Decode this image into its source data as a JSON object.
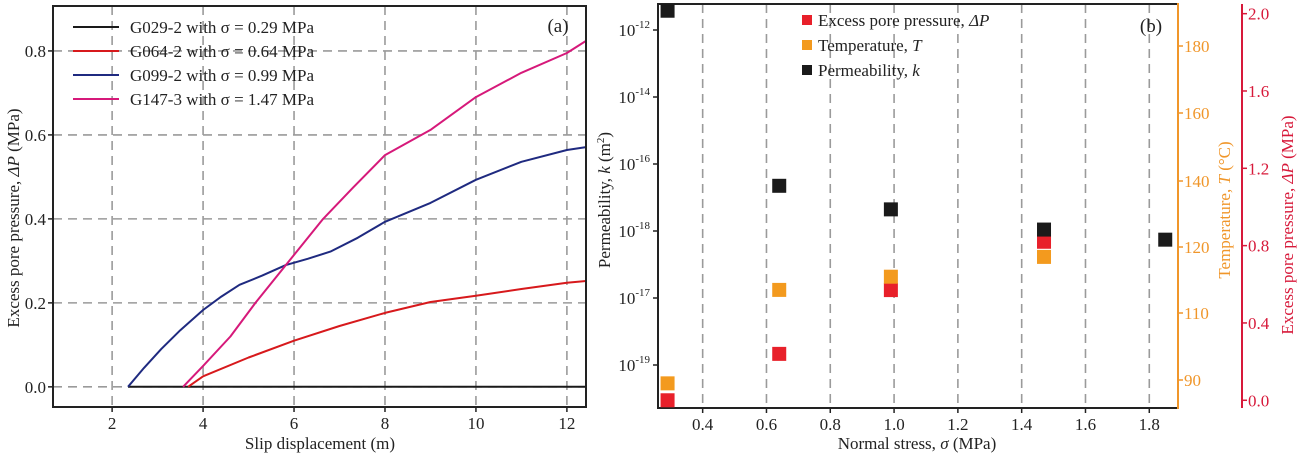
{
  "chart_data": [
    {
      "type": "line",
      "panel_label": "(a)",
      "xlabel": "Slip displacement (m)",
      "ylabel_prefix": "Excess pore pressure, ",
      "ylabel_symbol": "ΔP",
      "ylabel_suffix": " (MPa)",
      "xlim": [
        0.7,
        12.42
      ],
      "ylim": [
        -0.048,
        0.907
      ],
      "xticks": [
        2,
        4,
        6,
        8,
        10,
        12
      ],
      "xtick_labels": [
        "2",
        "4",
        "6",
        "8",
        "10",
        "12"
      ],
      "yticks": [
        0.0,
        0.2,
        0.4,
        0.6,
        0.8
      ],
      "ytick_labels": [
        "0.0",
        "0.2",
        "0.4",
        "0.6",
        "0.8"
      ],
      "grid": true,
      "legend_position": "top-left",
      "series": [
        {
          "name": "G029-2 with σ = 0.29 MPa",
          "color": "#1a1a1a",
          "x": [
            2.35,
            12.42
          ],
          "y": [
            0.0,
            0.0
          ]
        },
        {
          "name": "G064-2 with σ = 0.64 MPa",
          "color": "#d7191c",
          "x": [
            3.67,
            4.0,
            5.0,
            6.0,
            7.0,
            8.0,
            9.0,
            10.0,
            11.0,
            12.0,
            12.42
          ],
          "y": [
            0.0,
            0.025,
            0.07,
            0.11,
            0.145,
            0.176,
            0.202,
            0.217,
            0.233,
            0.248,
            0.252
          ]
        },
        {
          "name": "G099-2 with σ = 0.99 MPa",
          "color": "#1f2a80",
          "x": [
            2.35,
            2.7,
            3.08,
            3.5,
            4.0,
            4.4,
            4.8,
            5.3,
            5.82,
            6.3,
            6.8,
            7.4,
            8.0,
            9.0,
            10.0,
            11.0,
            12.0,
            12.42
          ],
          "y": [
            0.0,
            0.045,
            0.09,
            0.135,
            0.183,
            0.215,
            0.243,
            0.265,
            0.29,
            0.305,
            0.322,
            0.355,
            0.393,
            0.438,
            0.493,
            0.536,
            0.564,
            0.571
          ]
        },
        {
          "name": "G147-3 with σ = 1.47 MPa",
          "color": "#d6197a",
          "x": [
            3.56,
            4.0,
            4.6,
            5.15,
            5.82,
            6.64,
            7.3,
            8.0,
            9.0,
            10.0,
            11.0,
            12.0,
            12.42
          ],
          "y": [
            0.0,
            0.05,
            0.12,
            0.2,
            0.29,
            0.4,
            0.475,
            0.552,
            0.612,
            0.69,
            0.748,
            0.795,
            0.824
          ]
        }
      ]
    },
    {
      "type": "scatter",
      "panel_label": "(b)",
      "xlabel_prefix": "Normal stress, ",
      "xlabel_symbol": "σ",
      "xlabel_suffix": " (MPa)",
      "xlim": [
        0.26,
        1.89
      ],
      "xticks": [
        0.4,
        0.6,
        0.8,
        1.0,
        1.2,
        1.4,
        1.6,
        1.8
      ],
      "xtick_labels": [
        "0.4",
        "0.6",
        "0.8",
        "1.0",
        "1.2",
        "1.4",
        "1.6",
        "1.8"
      ],
      "grid": "vertical dashed",
      "legend_position": "top-center",
      "axes": {
        "left": {
          "label_prefix": "Permeability, ",
          "label_symbol": "k",
          "label_suffix": " (m",
          "label_sup": "2",
          "label_end": ")",
          "scale": "log",
          "color": "#1a1a1a",
          "ticks_exponent": [
            -12,
            -14,
            -16,
            -18,
            -17,
            -19
          ],
          "tick_base": "10",
          "ylim_exponent": [
            -23.2,
            -11.2
          ]
        },
        "right_inner": {
          "label_prefix": "Temperature, ",
          "label_symbol": "T",
          "label_suffix": " (°C)",
          "color": "#f0962a",
          "tick_labels": [
            "180",
            "160",
            "140",
            "120",
            "110",
            "90"
          ]
        },
        "right_outer": {
          "label_prefix": "Excess pore pressure, ",
          "label_symbol": "ΔP",
          "label_suffix": " (MPa)",
          "color": "#d7193a",
          "ylim": [
            -0.04,
            2.05
          ],
          "ticks": [
            0.0,
            0.4,
            0.8,
            1.2,
            1.6,
            2.0
          ],
          "tick_labels": [
            "0.0",
            "0.4",
            "0.8",
            "1.2",
            "1.6",
            "2.0"
          ]
        }
      },
      "series": [
        {
          "name_prefix": "Excess pore pressure, ",
          "name_symbol": "ΔP",
          "axis": "right_outer",
          "color": "#e8202a",
          "x": [
            0.29,
            0.64,
            0.99,
            1.47
          ],
          "y": [
            0.0,
            0.24,
            0.57,
            0.82
          ]
        },
        {
          "name_prefix": "Temperature, ",
          "name_symbol": "T",
          "axis": "right_inner",
          "color": "#f39a1e",
          "x": [
            0.29,
            0.64,
            0.99,
            1.47
          ],
          "y": [
            89,
            113.5,
            115.5,
            118.5
          ]
        },
        {
          "name_prefix": "Permeability, ",
          "name_symbol": "k",
          "axis": "left",
          "color": "#1a1a1a",
          "x": [
            0.29,
            0.64,
            0.99,
            1.47,
            1.85
          ],
          "y_exponent": [
            -11.4,
            -16.6,
            -17.3,
            -17.9,
            -18.2
          ]
        }
      ]
    }
  ]
}
